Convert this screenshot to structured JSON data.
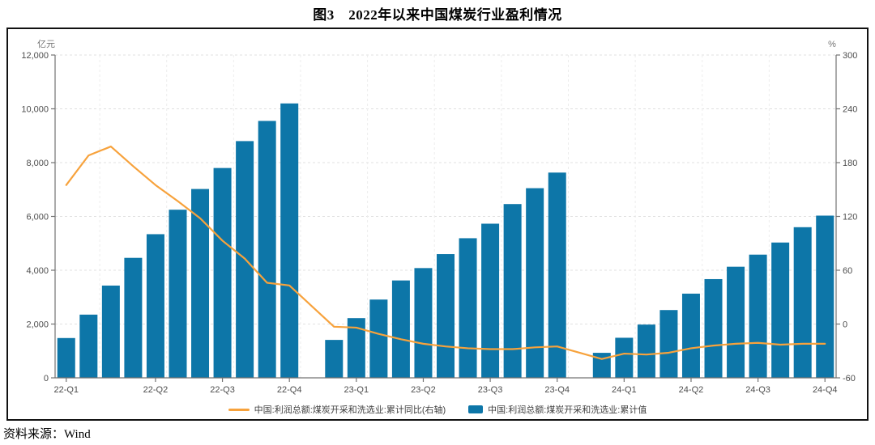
{
  "title": "图3　2022年以来中国煤炭行业盈利情况",
  "source": "资料来源：Wind",
  "axes": {
    "left_unit": "亿元",
    "right_unit": "%"
  },
  "legend": {
    "line_label": "中国:利润总额:煤炭开采和洗选业:累计同比(右轴)",
    "bar_label": "中国:利润总额:煤炭开采和洗选业:累计值"
  },
  "colors": {
    "bar": "#0d76a8",
    "line": "#f7a23c",
    "grid": "#e0e0e0",
    "axis": "#737373",
    "tick_text": "#4d4d4d"
  },
  "chart_data": {
    "type": "bar+line",
    "title": "图3　2022年以来中国煤炭行业盈利情况",
    "x_labels": [
      "22-Q1",
      "22-Q2",
      "22-Q3",
      "22-Q4",
      "23-Q1",
      "23-Q2",
      "23-Q3",
      "23-Q4",
      "24-Q1",
      "24-Q2",
      "24-Q3",
      "24-Q4"
    ],
    "label_slots": [
      0,
      4,
      7,
      10,
      13,
      16,
      19,
      22,
      25,
      28,
      31,
      34
    ],
    "quarter_boundaries": [
      2,
      5,
      8,
      11,
      14,
      17,
      20,
      23,
      26,
      29,
      32
    ],
    "months": [
      "2022-02",
      "2022-03",
      "2022-04",
      "2022-05",
      "2022-06",
      "2022-07",
      "2022-08",
      "2022-09",
      "2022-10",
      "2022-11",
      "2022-12",
      "2023-02",
      "2023-03",
      "2023-04",
      "2023-05",
      "2023-06",
      "2023-07",
      "2023-08",
      "2023-09",
      "2023-10",
      "2023-11",
      "2023-12",
      "2024-02",
      "2024-03",
      "2024-04",
      "2024-05",
      "2024-06",
      "2024-07",
      "2024-08",
      "2024-09",
      "2024-10",
      "2024-11",
      "2024-12"
    ],
    "series": [
      {
        "name": "中国:利润总额:煤炭开采和洗选业:累计值",
        "type": "bar",
        "axis": "left",
        "unit": "亿元",
        "values": [
          1480,
          2350,
          3430,
          4460,
          5340,
          6250,
          7020,
          7800,
          8800,
          9550,
          10200,
          1410,
          2220,
          2910,
          3620,
          4080,
          4600,
          5190,
          5730,
          6460,
          7050,
          7630,
          930,
          1490,
          1980,
          2520,
          3130,
          3670,
          4130,
          4580,
          5030,
          5600,
          6030
        ]
      },
      {
        "name": "中国:利润总额:煤炭开采和洗选业:累计同比(右轴)",
        "type": "line",
        "axis": "right",
        "unit": "%",
        "values": [
          155,
          188,
          198,
          176,
          155,
          137,
          118,
          93,
          73,
          46,
          43,
          -3,
          -4,
          -11,
          -17,
          -22,
          -25,
          -27,
          -28,
          -28,
          -26,
          -25,
          -39,
          -33,
          -34,
          -32,
          -27,
          -24,
          -22,
          -21,
          -23,
          -22,
          -22
        ]
      }
    ],
    "left_axis": {
      "min": 0,
      "max": 12000,
      "step": 2000,
      "grid": true
    },
    "right_axis": {
      "min": -60,
      "max": 300,
      "step": 60,
      "grid": false
    },
    "legend_position": "bottom"
  }
}
